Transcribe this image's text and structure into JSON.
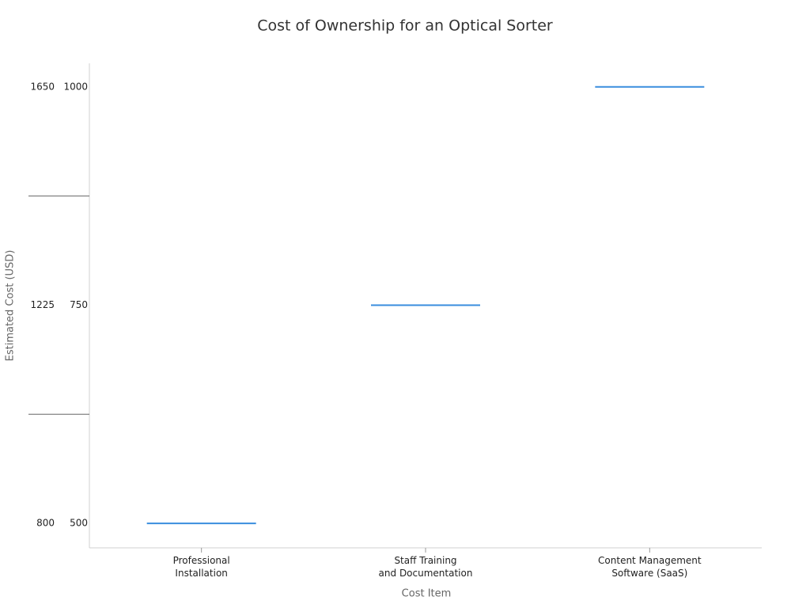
{
  "chart_data": {
    "type": "marker",
    "title": "Cost of Ownership for an Optical Sorter",
    "x_label": "Cost Item",
    "y_label": "Estimated Cost (USD)",
    "categories": [
      "Professional\nInstallation",
      "Staff Training\nand Documentation",
      "Content Management\nSoftware (SaaS)"
    ],
    "values": [
      500,
      750,
      1000
    ],
    "color": "#3a8ede",
    "ylim": [
      472,
      1027
    ],
    "yticks": [
      500,
      750,
      1000
    ],
    "yminor": [
      625,
      875
    ],
    "y2lim": [
      752,
      1696
    ],
    "y2ticks": [
      800,
      1225,
      1650
    ]
  }
}
